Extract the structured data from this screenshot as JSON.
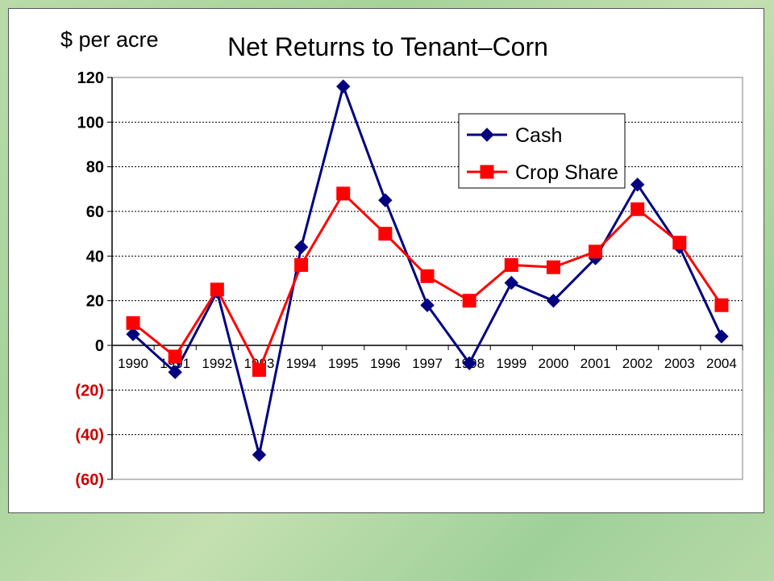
{
  "chart_data": {
    "type": "line",
    "title": "Net Returns to Tenant–Corn",
    "ylabel": "$ per acre",
    "xlabel": "",
    "categories": [
      "1990",
      "1991",
      "1992",
      "1993",
      "1994",
      "1995",
      "1996",
      "1997",
      "1998",
      "1999",
      "2000",
      "2001",
      "2002",
      "2003",
      "2004"
    ],
    "ylim": [
      -60,
      120
    ],
    "yticks": [
      120,
      100,
      80,
      60,
      40,
      20,
      0,
      -20,
      -40,
      -60
    ],
    "ytick_labels": [
      "120",
      "100",
      "80",
      "60",
      "40",
      "20",
      "0",
      "(20)",
      "(40)",
      "(60)"
    ],
    "grid": true,
    "legend_position": "top-right",
    "series": [
      {
        "name": "Cash",
        "color": "#000080",
        "marker": "diamond",
        "values": [
          5,
          -12,
          24,
          -49,
          44,
          116,
          65,
          18,
          -8,
          28,
          20,
          39,
          72,
          44,
          4
        ]
      },
      {
        "name": "Crop Share",
        "color": "#ff0000",
        "marker": "square",
        "values": [
          10,
          -5,
          25,
          -11,
          36,
          68,
          50,
          31,
          20,
          36,
          35,
          42,
          61,
          46,
          18
        ]
      }
    ]
  },
  "colors": {
    "negative_label": "#cc0000",
    "axis": "#000000",
    "grid": "#000000"
  }
}
